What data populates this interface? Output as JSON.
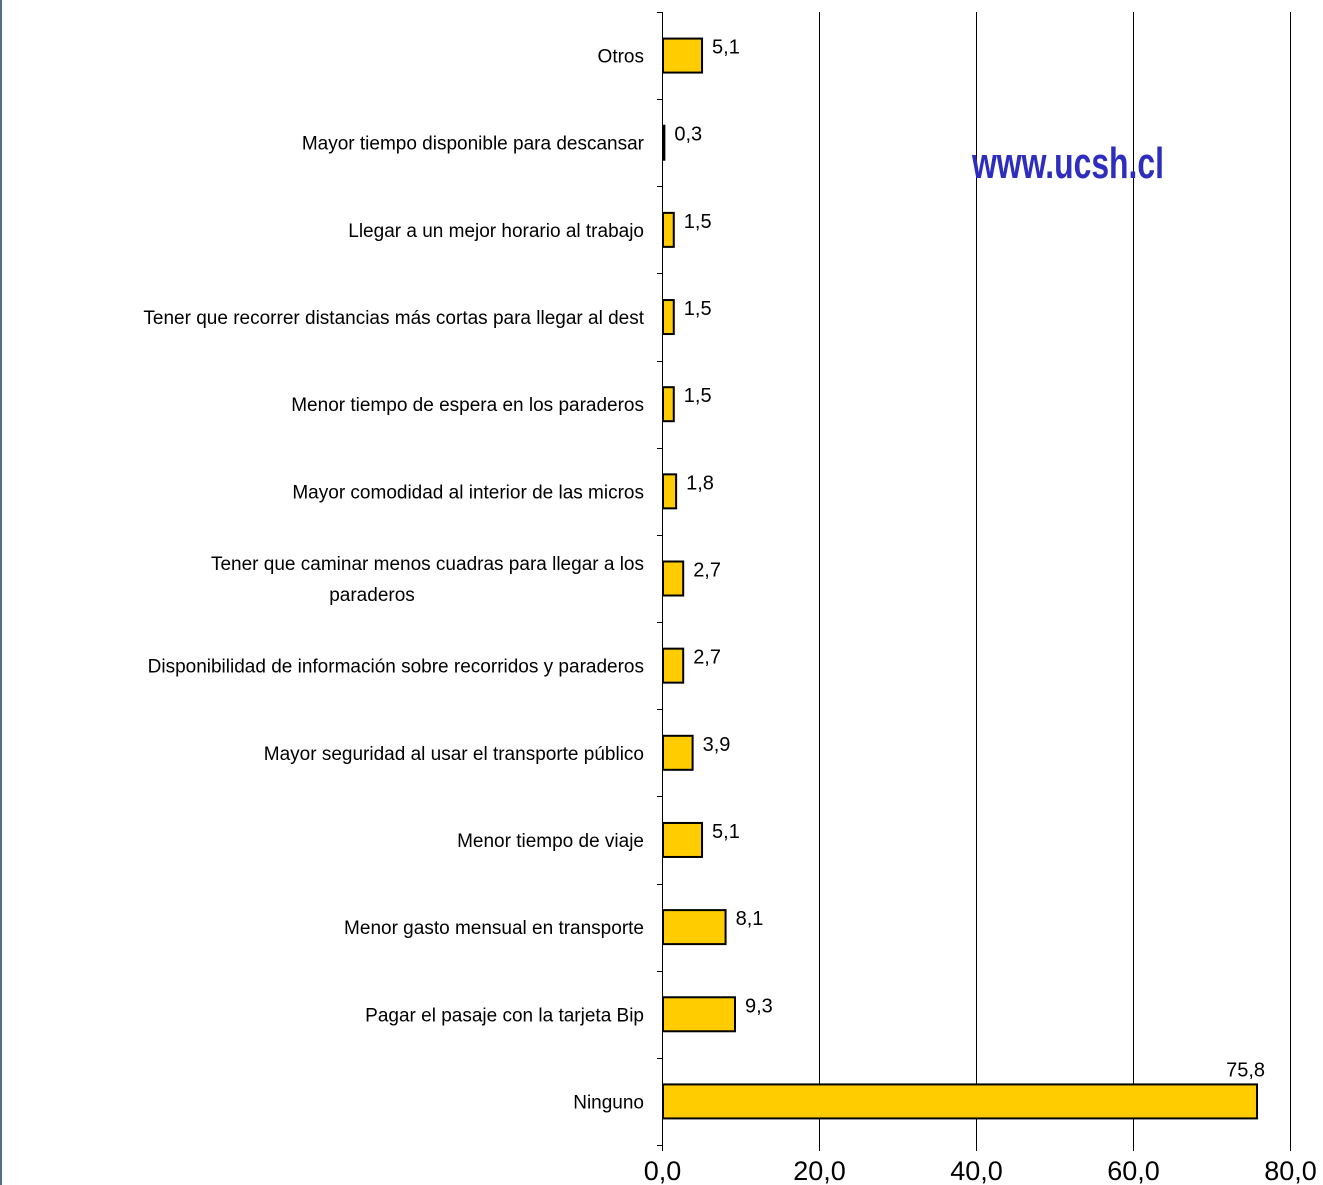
{
  "chart_data": {
    "type": "bar",
    "orientation": "horizontal",
    "categories": [
      "Otros",
      "Mayor tiempo disponible para descansar",
      "Llegar a un mejor horario al trabajo",
      "Tener que recorrer distancias más cortas para llegar al dest",
      "Menor tiempo de espera en los paraderos",
      "Mayor comodidad al interior de las micros",
      "Tener que caminar menos cuadras para llegar a los paraderos",
      "Disponibilidad de información sobre recorridos y paraderos",
      "Mayor seguridad al usar el transporte público",
      "Menor tiempo de viaje",
      "Menor gasto mensual en transporte",
      "Pagar el pasaje con la tarjeta Bip",
      "Ninguno"
    ],
    "category_lines": [
      [
        "Otros"
      ],
      [
        "Mayor tiempo disponible para descansar"
      ],
      [
        "Llegar a un mejor horario al trabajo"
      ],
      [
        "Tener que recorrer distancias más cortas para llegar al dest"
      ],
      [
        "Menor tiempo de espera en los paraderos"
      ],
      [
        "Mayor comodidad al interior de las micros"
      ],
      [
        "Tener que caminar menos cuadras para llegar a los",
        "paraderos"
      ],
      [
        "Disponibilidad de información sobre recorridos y paraderos"
      ],
      [
        "Mayor seguridad al usar el transporte público"
      ],
      [
        "Menor tiempo de viaje"
      ],
      [
        "Menor gasto mensual en transporte"
      ],
      [
        "Pagar el pasaje con la tarjeta Bip"
      ],
      [
        "Ninguno"
      ]
    ],
    "values": [
      5.1,
      0.3,
      1.5,
      1.5,
      1.5,
      1.8,
      2.7,
      2.7,
      3.9,
      5.1,
      8.1,
      9.3,
      75.8
    ],
    "value_labels": [
      "5,1",
      "0,3",
      "1,5",
      "1,5",
      "1,5",
      "1,8",
      "2,7",
      "2,7",
      "3,9",
      "5,1",
      "8,1",
      "9,3",
      "75,8"
    ],
    "xlim": [
      0,
      80
    ],
    "xticks": [
      0,
      20,
      40,
      60,
      80
    ],
    "xtick_labels": [
      "0,0",
      "20,0",
      "40,0",
      "60,0",
      "80,0"
    ],
    "grid": "vertical",
    "legend": "none",
    "bar_color": "#ffcc00",
    "bar_border_color": "#000000",
    "title": "",
    "xlabel": "",
    "ylabel": ""
  },
  "watermark": {
    "text": "www.ucsh.cl",
    "color": "#2d2dbe"
  },
  "frame_border_color": "#5a6a8a"
}
